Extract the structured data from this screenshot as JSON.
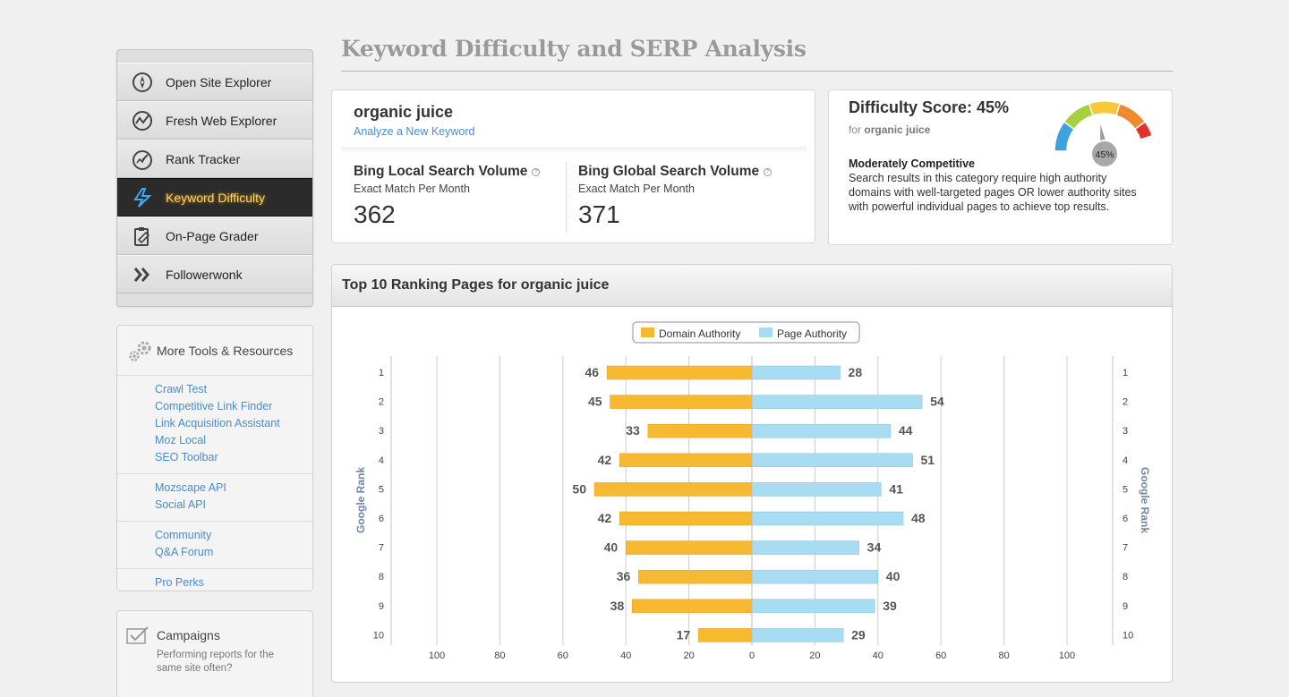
{
  "sidebar": {
    "items": [
      {
        "label": "Open Site Explorer",
        "icon": "compass-icon",
        "active": false
      },
      {
        "label": "Fresh Web Explorer",
        "icon": "radar-icon",
        "active": false
      },
      {
        "label": "Rank Tracker",
        "icon": "speedometer-icon",
        "active": false
      },
      {
        "label": "Keyword Difficulty",
        "icon": "keyword-difficulty-icon",
        "active": true
      },
      {
        "label": "On-Page Grader",
        "icon": "clipboard-icon",
        "active": false
      },
      {
        "label": "Followerwonk",
        "icon": "double-chevron-icon",
        "active": false
      }
    ],
    "tools": {
      "title": "More Tools & Resources",
      "groups": [
        [
          "Crawl Test",
          "Competitive Link Finder",
          "Link Acquisition Assistant",
          "Moz Local",
          "SEO Toolbar"
        ],
        [
          "Mozscape API",
          "Social API"
        ],
        [
          "Community",
          "Q&A Forum"
        ],
        [
          "Pro Perks"
        ]
      ]
    },
    "campaigns": {
      "title": "Campaigns",
      "desc": "Performing reports for the same site often?"
    }
  },
  "page": {
    "title": "Keyword Difficulty and SERP Analysis"
  },
  "keyword": {
    "name": "organic juice",
    "analyze_link": "Analyze a New Keyword",
    "local": {
      "label": "Bing Local Search Volume",
      "sub": "Exact Match Per Month",
      "value": "362"
    },
    "global": {
      "label": "Bing Global Search Volume",
      "sub": "Exact Match Per Month",
      "value": "371"
    }
  },
  "difficulty": {
    "title": "Difficulty Score: 45%",
    "for_prefix": "for",
    "for_keyword": "organic juice",
    "level": "Moderately Competitive",
    "description": "Search results in this category require high authority domains with well-targeted pages OR lower authority sites with powerful individual pages to achieve top results.",
    "gauge_value": 45,
    "gauge_label": "45%",
    "gauge_colors": [
      "#3ea3dc",
      "#a8cf3d",
      "#f6c83a",
      "#f08a2e",
      "#e0332c"
    ]
  },
  "chart_title": "Top 10 Ranking Pages for organic juice",
  "chart_data": {
    "type": "bar",
    "orientation": "horizontal-diverging",
    "categories": [
      "1",
      "2",
      "3",
      "4",
      "5",
      "6",
      "7",
      "8",
      "9",
      "10"
    ],
    "series": [
      {
        "name": "Domain Authority",
        "color": "#f8b932",
        "values": [
          46,
          45,
          33,
          42,
          50,
          42,
          40,
          36,
          38,
          17
        ]
      },
      {
        "name": "Page Authority",
        "color": "#a8dcf3",
        "values": [
          28,
          54,
          44,
          51,
          41,
          48,
          34,
          40,
          39,
          29
        ]
      }
    ],
    "x_ticks": [
      "100",
      "80",
      "60",
      "40",
      "20",
      "0",
      "20",
      "40",
      "60",
      "80",
      "100"
    ],
    "xlim": [
      -100,
      100
    ],
    "ylabel_left": "Google Rank",
    "ylabel_right": "Google Rank",
    "legend": "top-center",
    "grid": true
  }
}
